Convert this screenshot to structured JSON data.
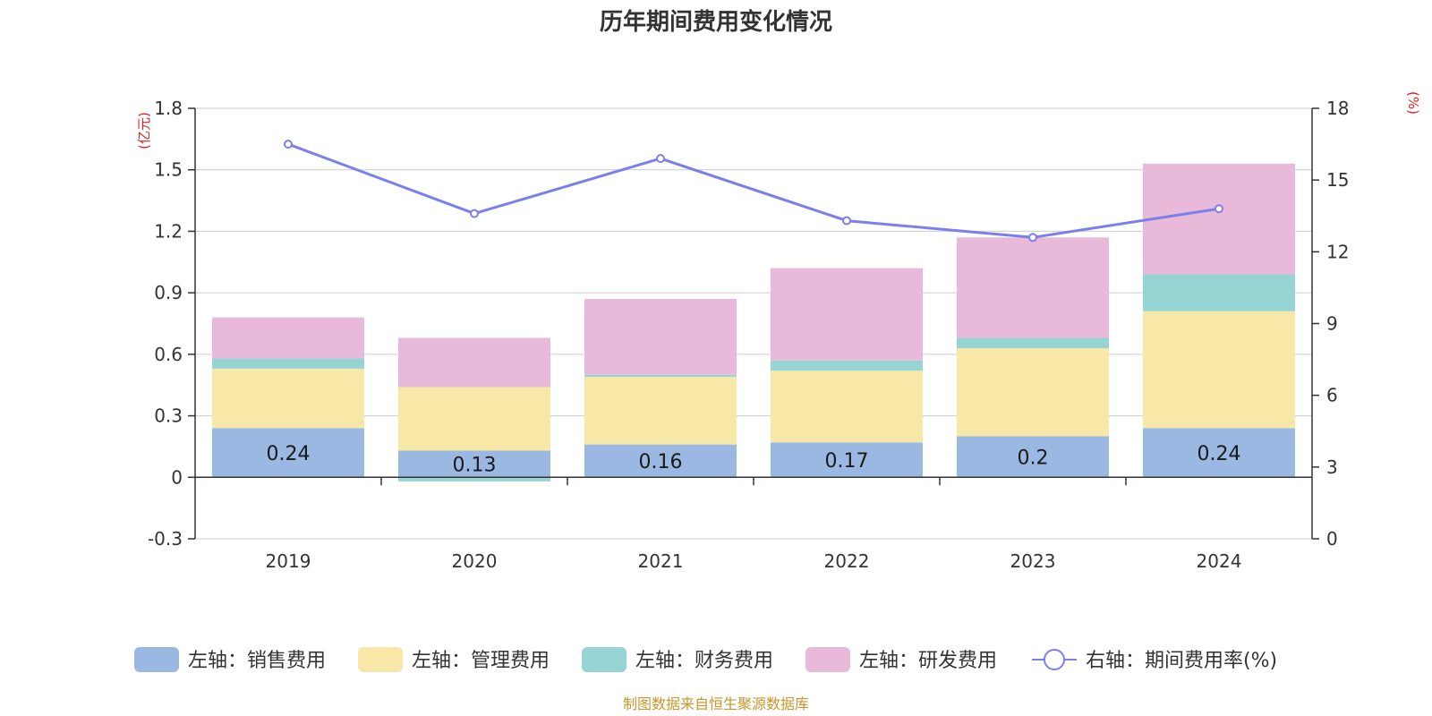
{
  "chart_data": {
    "type": "bar",
    "stacked": true,
    "title": "历年期间费用变化情况",
    "categories": [
      "2019",
      "2020",
      "2021",
      "2022",
      "2023",
      "2024"
    ],
    "left_axis": {
      "unit": "(亿元)",
      "ylim": [
        -0.3,
        1.8
      ],
      "ticks": [
        "1.8",
        "1.5",
        "1.2",
        "0.9",
        "0.6",
        "0.3",
        "0",
        "-0.3"
      ]
    },
    "right_axis": {
      "unit": "(%)",
      "ylim": [
        0,
        18
      ],
      "ticks": [
        "18",
        "15",
        "12",
        "9",
        "6",
        "3",
        "0"
      ]
    },
    "series": [
      {
        "name": "左轴：销售费用",
        "color": "#9bb8e3",
        "values": [
          0.24,
          0.13,
          0.16,
          0.17,
          0.2,
          0.24
        ],
        "labels": [
          "0.24",
          "0.13",
          "0.16",
          "0.17",
          "0.2",
          "0.24"
        ]
      },
      {
        "name": "左轴：管理费用",
        "color": "#f8e8a8",
        "values": [
          0.29,
          0.31,
          0.33,
          0.35,
          0.43,
          0.57
        ]
      },
      {
        "name": "左轴：财务费用",
        "color": "#97d4d4",
        "values": [
          0.05,
          -0.02,
          0.01,
          0.05,
          0.05,
          0.18
        ]
      },
      {
        "name": "左轴：研发费用",
        "color": "#e8b9d9",
        "values": [
          0.2,
          0.24,
          0.37,
          0.45,
          0.49,
          0.54
        ]
      }
    ],
    "line": {
      "name": "右轴：期间费用率(%)",
      "color": "#7b7fea",
      "values": [
        16.5,
        13.6,
        15.9,
        13.3,
        12.6,
        13.8
      ]
    },
    "legend_position": "bottom",
    "grid": true
  },
  "source_text": "制图数据来自恒生聚源数据库"
}
